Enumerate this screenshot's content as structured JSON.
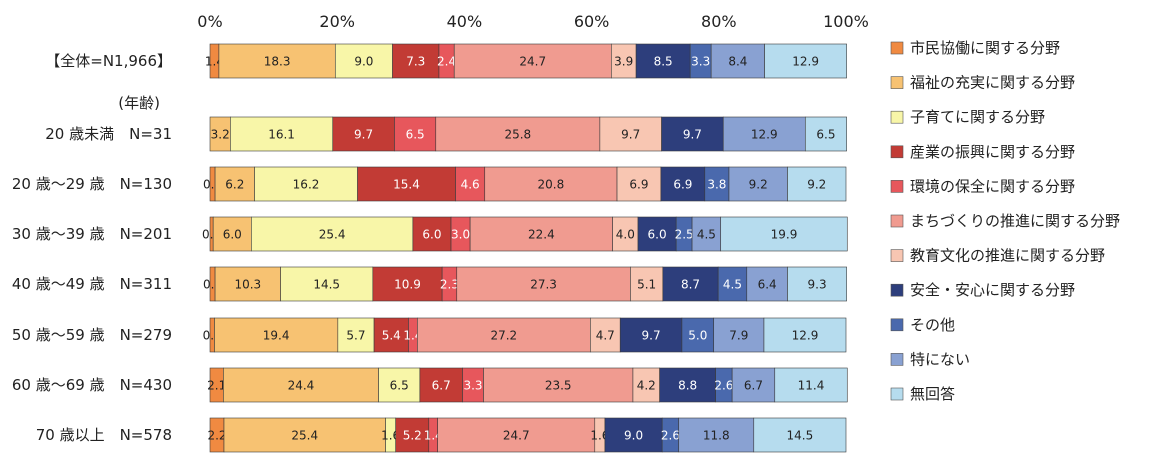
{
  "chart_data": {
    "type": "bar",
    "orientation": "horizontal",
    "stacked": true,
    "xlim": [
      0,
      100
    ],
    "x_ticks": [
      "0%",
      "20%",
      "40%",
      "60%",
      "80%",
      "100%"
    ],
    "group_label": "(年齢)",
    "legend_position": "right",
    "categories": [
      "【全体=N1,966】",
      "20 歳未満　N=31",
      "20 歳～29 歳　N=130",
      "30 歳～39 歳　N=201",
      "40 歳～49 歳　N=311",
      "50 歳～59 歳　N=279",
      "60 歳～69 歳　N=430",
      "70 歳以上　N=578"
    ],
    "series": [
      {
        "name": "市民協働に関する分野",
        "color": "#f08a41",
        "text_color": "#222222",
        "values": [
          1.4,
          0.0,
          0.8,
          0.5,
          0.8,
          0.7,
          2.1,
          2.2
        ],
        "labels": [
          "1.4",
          "",
          "0.8",
          "0.5",
          "0.8",
          "0.7",
          "2.1",
          "2.2"
        ]
      },
      {
        "name": "福祉の充実に関する分野",
        "color": "#f7c272",
        "text_color": "#222222",
        "values": [
          18.3,
          3.2,
          6.2,
          6.0,
          10.3,
          19.4,
          24.4,
          25.4
        ],
        "labels": [
          "18.3",
          "3.2",
          "6.2",
          "6.0",
          "10.3",
          "19.4",
          "24.4",
          "25.4"
        ]
      },
      {
        "name": "子育てに関する分野",
        "color": "#f8f6a8",
        "text_color": "#222222",
        "values": [
          9.0,
          16.1,
          16.2,
          25.4,
          14.5,
          5.7,
          6.5,
          1.6
        ],
        "labels": [
          "9.0",
          "16.1",
          "16.2",
          "25.4",
          "14.5",
          "5.7",
          "6.5",
          "1.6"
        ]
      },
      {
        "name": "産業の振興に関する分野",
        "color": "#c23b35",
        "text_color": "#ffffff",
        "values": [
          7.3,
          9.7,
          15.4,
          6.0,
          10.9,
          5.4,
          6.7,
          5.2
        ],
        "labels": [
          "7.3",
          "9.7",
          "15.4",
          "6.0",
          "10.9",
          "5.4",
          "6.7",
          "5.2"
        ]
      },
      {
        "name": "環境の保全に関する分野",
        "color": "#e7575c",
        "text_color": "#ffffff",
        "values": [
          2.4,
          6.5,
          4.6,
          3.0,
          2.3,
          1.4,
          3.3,
          1.4
        ],
        "labels": [
          "2.4",
          "6.5",
          "4.6",
          "3.0",
          "2.3",
          "1.4",
          "3.3",
          "1.4"
        ]
      },
      {
        "name": "まちづくりの推進に関する分野",
        "color": "#f09b90",
        "text_color": "#222222",
        "values": [
          24.7,
          25.8,
          20.8,
          22.4,
          27.3,
          27.2,
          23.5,
          24.7
        ],
        "labels": [
          "24.7",
          "25.8",
          "20.8",
          "22.4",
          "27.3",
          "27.2",
          "23.5",
          "24.7"
        ]
      },
      {
        "name": "教育文化の推進に関する分野",
        "color": "#f8c6b2",
        "text_color": "#222222",
        "values": [
          3.9,
          9.7,
          6.9,
          4.0,
          5.1,
          4.7,
          4.2,
          1.6
        ],
        "labels": [
          "3.9",
          "9.7",
          "6.9",
          "4.0",
          "5.1",
          "4.7",
          "4.2",
          "1.6"
        ]
      },
      {
        "name": "安全・安心に関する分野",
        "color": "#2d3e7c",
        "text_color": "#ffffff",
        "values": [
          8.5,
          9.7,
          6.9,
          6.0,
          8.7,
          9.7,
          8.8,
          9.0
        ],
        "labels": [
          "8.5",
          "9.7",
          "6.9",
          "6.0",
          "8.7",
          "9.7",
          "8.8",
          "9.0"
        ]
      },
      {
        "name": "その他",
        "color": "#4a69ad",
        "text_color": "#ffffff",
        "values": [
          3.3,
          0.0,
          3.8,
          2.5,
          4.5,
          5.0,
          2.6,
          2.6
        ],
        "labels": [
          "3.3",
          "",
          "3.8",
          "2.5",
          "4.5",
          "5.0",
          "2.6",
          "2.6"
        ]
      },
      {
        "name": "特にない",
        "color": "#89a1d2",
        "text_color": "#222222",
        "values": [
          8.4,
          12.9,
          9.2,
          4.5,
          6.4,
          7.9,
          6.7,
          11.8
        ],
        "labels": [
          "8.4",
          "12.9",
          "9.2",
          "4.5",
          "6.4",
          "7.9",
          "6.7",
          "11.8"
        ]
      },
      {
        "name": "無回答",
        "color": "#b6dcee",
        "text_color": "#222222",
        "values": [
          12.9,
          6.5,
          9.2,
          19.9,
          9.3,
          12.9,
          11.4,
          14.5
        ],
        "labels": [
          "12.9",
          "6.5",
          "9.2",
          "19.9",
          "9.3",
          "12.9",
          "11.4",
          "14.5"
        ]
      }
    ]
  }
}
